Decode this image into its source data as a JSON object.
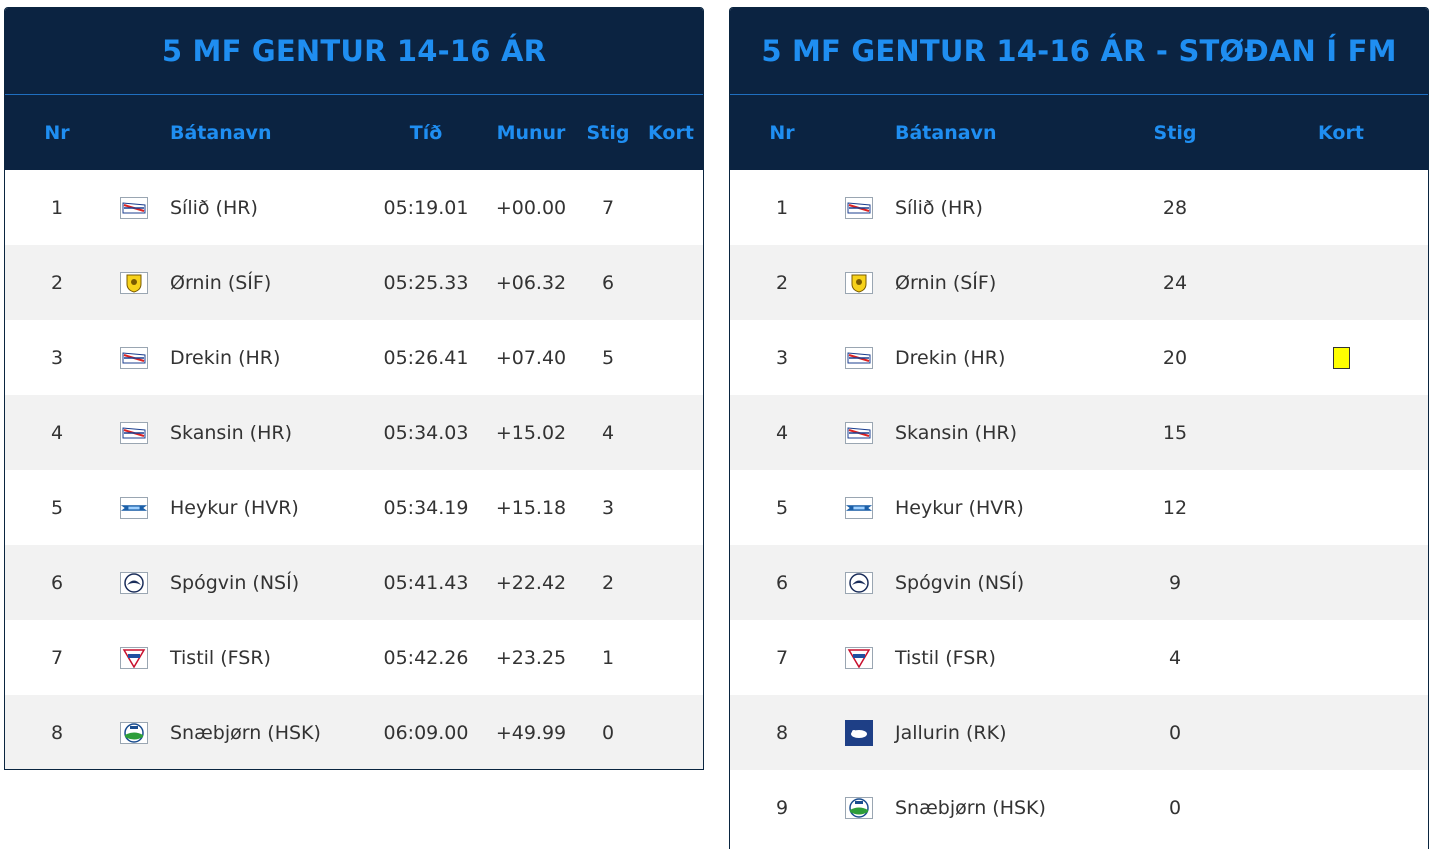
{
  "left": {
    "title": "5 MF GENTUR 14-16 ÁR",
    "headers": {
      "nr": "Nr",
      "boat": "Bátanavn",
      "time": "Tíð",
      "diff": "Munur",
      "points": "Stig",
      "card": "Kort"
    },
    "rows": [
      {
        "nr": "1",
        "logo": "hr-flag-icon",
        "boat": "Sílið (HR)",
        "time": "05:19.01",
        "diff": "+00.00",
        "points": "7",
        "card": ""
      },
      {
        "nr": "2",
        "logo": "sif-shield-icon",
        "boat": "Ørnin (SÍF)",
        "time": "05:25.33",
        "diff": "+06.32",
        "points": "6",
        "card": ""
      },
      {
        "nr": "3",
        "logo": "hr-flag-icon",
        "boat": "Drekin (HR)",
        "time": "05:26.41",
        "diff": "+07.40",
        "points": "5",
        "card": ""
      },
      {
        "nr": "4",
        "logo": "hr-flag-icon",
        "boat": "Skansin (HR)",
        "time": "05:34.03",
        "diff": "+15.02",
        "points": "4",
        "card": ""
      },
      {
        "nr": "5",
        "logo": "hvr-banner-icon",
        "boat": "Heykur (HVR)",
        "time": "05:34.19",
        "diff": "+15.18",
        "points": "3",
        "card": ""
      },
      {
        "nr": "6",
        "logo": "nsi-bird-icon",
        "boat": "Spógvin (NSÍ)",
        "time": "05:41.43",
        "diff": "+22.42",
        "points": "2",
        "card": ""
      },
      {
        "nr": "7",
        "logo": "fsr-triangle-icon",
        "boat": "Tistil (FSR)",
        "time": "05:42.26",
        "diff": "+23.25",
        "points": "1",
        "card": ""
      },
      {
        "nr": "8",
        "logo": "hsk-globe-icon",
        "boat": "Snæbjørn (HSK)",
        "time": "06:09.00",
        "diff": "+49.99",
        "points": "0",
        "card": ""
      }
    ]
  },
  "right": {
    "title": "5 MF GENTUR 14-16 ÁR - STØÐAN Í FM",
    "headers": {
      "nr": "Nr",
      "boat": "Bátanavn",
      "points": "Stig",
      "card": "Kort"
    },
    "rows": [
      {
        "nr": "1",
        "logo": "hr-flag-icon",
        "boat": "Sílið (HR)",
        "points": "28",
        "card": ""
      },
      {
        "nr": "2",
        "logo": "sif-shield-icon",
        "boat": "Ørnin (SÍF)",
        "points": "24",
        "card": ""
      },
      {
        "nr": "3",
        "logo": "hr-flag-icon",
        "boat": "Drekin (HR)",
        "points": "20",
        "card": "yellow"
      },
      {
        "nr": "4",
        "logo": "hr-flag-icon",
        "boat": "Skansin (HR)",
        "points": "15",
        "card": ""
      },
      {
        "nr": "5",
        "logo": "hvr-banner-icon",
        "boat": "Heykur (HVR)",
        "points": "12",
        "card": ""
      },
      {
        "nr": "6",
        "logo": "nsi-bird-icon",
        "boat": "Spógvin (NSÍ)",
        "points": "9",
        "card": ""
      },
      {
        "nr": "7",
        "logo": "fsr-triangle-icon",
        "boat": "Tistil (FSR)",
        "points": "4",
        "card": ""
      },
      {
        "nr": "8",
        "logo": "rk-seal-icon",
        "boat": "Jallurin (RK)",
        "points": "0",
        "card": ""
      },
      {
        "nr": "9",
        "logo": "hsk-globe-icon",
        "boat": "Snæbjørn (HSK)",
        "points": "0",
        "card": ""
      }
    ]
  },
  "colors": {
    "header_bg": "#0b2341",
    "header_text": "#1f8ef1",
    "alt_row": "#f2f2f2",
    "yellow_card": "#ffff00"
  }
}
